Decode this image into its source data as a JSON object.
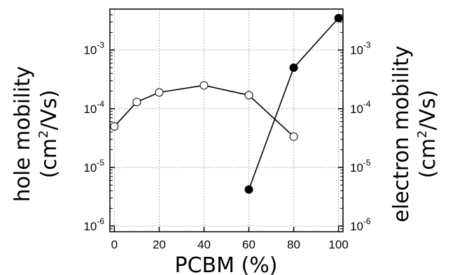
{
  "chart_data": {
    "type": "line",
    "xlabel": "PCBM (%)",
    "ylabel_left": {
      "line1": "hole mobility",
      "unit_pre": "(cm",
      "unit_sup": "2",
      "unit_post": "/Vs)"
    },
    "ylabel_right": {
      "line1": "electron mobility",
      "unit_pre": "(cm",
      "unit_sup": "2",
      "unit_post": "/Vs)"
    },
    "x_ticks": [
      "0",
      "20",
      "40",
      "60",
      "80",
      "100"
    ],
    "xlim": [
      -2,
      102
    ],
    "y_scale": "log",
    "ylim": [
      8e-07,
      0.005
    ],
    "y_ticks": [
      {
        "base": "10",
        "exp": "-3",
        "value": 0.001
      },
      {
        "base": "10",
        "exp": "-4",
        "value": 0.0001
      },
      {
        "base": "10",
        "exp": "-5",
        "value": 1e-05
      },
      {
        "base": "10",
        "exp": "-6",
        "value": 1e-06
      }
    ],
    "grid": true,
    "series": [
      {
        "axis": "left",
        "marker": "open-circle",
        "color": "#000000",
        "x": [
          0,
          10,
          20,
          40,
          60,
          80
        ],
        "y": [
          5e-05,
          0.00013,
          0.00019,
          0.00025,
          0.00017,
          3.35e-05
        ]
      },
      {
        "axis": "right",
        "marker": "filled-circle",
        "color": "#000000",
        "x": [
          60,
          80,
          100
        ],
        "y": [
          4.2e-06,
          0.0005,
          0.0035
        ]
      }
    ]
  }
}
